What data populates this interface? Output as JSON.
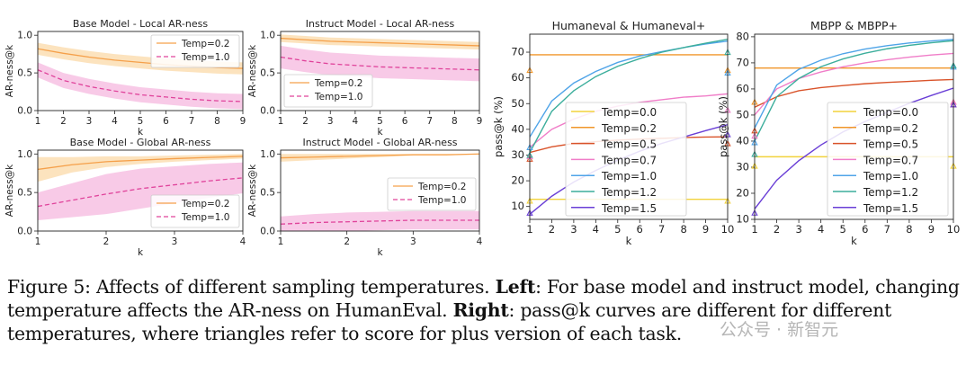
{
  "caption": {
    "lead": "Figure 5: Affects of different sampling temperatures. ",
    "left_label": "Left",
    "left_text": ": For base model and instruct model, changing temperature affects the AR-ness on HumanEval. ",
    "right_label": "Right",
    "right_text": ": pass@k curves are different for different temperatures, where triangles refer to score for plus version of each task."
  },
  "watermark": "公众号 · 新智元",
  "colors": {
    "temp02_ar": "#f5a04a",
    "temp10_ar": "#e0439b",
    "band02": "#fbd9a8",
    "band10": "#f5b8df",
    "t00": "#f2d23c",
    "t02": "#f0962a",
    "t05": "#d9532a",
    "t07": "#f07dc8",
    "t10": "#4fa4e8",
    "t12": "#3cae9c",
    "t15": "#6a3fd6"
  },
  "chart_data": [
    {
      "type": "line",
      "title": "Base Model - Local AR-ness",
      "xlabel": "k",
      "ylabel": "AR-ness@k",
      "x": [
        1,
        2,
        3,
        4,
        5,
        6,
        7,
        8,
        9
      ],
      "xlim": [
        1,
        9
      ],
      "ylim": [
        0,
        1.05
      ],
      "yticks": [
        0.0,
        0.5,
        1.0
      ],
      "legend": "top-right",
      "series": [
        {
          "name": "Temp=0.2",
          "values": [
            0.82,
            0.76,
            0.71,
            0.67,
            0.64,
            0.61,
            0.59,
            0.57,
            0.56
          ],
          "band": [
            0.08,
            0.08,
            0.08,
            0.08,
            0.08,
            0.08,
            0.08,
            0.08,
            0.08
          ]
        },
        {
          "name": "Temp=1.0",
          "values": [
            0.54,
            0.4,
            0.32,
            0.26,
            0.21,
            0.18,
            0.15,
            0.13,
            0.12
          ],
          "band": [
            0.1,
            0.1,
            0.1,
            0.1,
            0.1,
            0.1,
            0.1,
            0.1,
            0.1
          ]
        }
      ]
    },
    {
      "type": "line",
      "title": "Instruct Model - Local AR-ness",
      "xlabel": "k",
      "ylabel": "AR-ness@k",
      "x": [
        1,
        2,
        3,
        4,
        5,
        6,
        7,
        8,
        9
      ],
      "xlim": [
        1,
        9
      ],
      "ylim": [
        0,
        1.05
      ],
      "yticks": [
        0.0,
        0.5,
        1.0
      ],
      "legend": "bottom-left",
      "series": [
        {
          "name": "Temp=0.2",
          "values": [
            0.96,
            0.94,
            0.92,
            0.91,
            0.9,
            0.89,
            0.88,
            0.87,
            0.86
          ],
          "band": [
            0.05,
            0.05,
            0.05,
            0.05,
            0.05,
            0.05,
            0.05,
            0.05,
            0.05
          ]
        },
        {
          "name": "Temp=1.0",
          "values": [
            0.71,
            0.66,
            0.62,
            0.6,
            0.58,
            0.57,
            0.56,
            0.55,
            0.54
          ],
          "band": [
            0.15,
            0.15,
            0.15,
            0.15,
            0.15,
            0.15,
            0.15,
            0.15,
            0.15
          ]
        }
      ]
    },
    {
      "type": "line",
      "title": "Base Model - Global AR-ness",
      "xlabel": "k",
      "ylabel": "AR-ness@k",
      "x": [
        1,
        1.5,
        2,
        2.5,
        3,
        3.5,
        4
      ],
      "xlim": [
        1,
        4
      ],
      "ylim": [
        0,
        1.05
      ],
      "xticks": [
        1,
        2,
        3,
        4
      ],
      "yticks": [
        0.0,
        0.5,
        1.0
      ],
      "legend": "bottom-right",
      "series": [
        {
          "name": "Temp=0.2",
          "values": [
            0.8,
            0.86,
            0.9,
            0.92,
            0.94,
            0.955,
            0.97
          ],
          "band": [
            0.16,
            0.1,
            0.07,
            0.05,
            0.04,
            0.035,
            0.03
          ]
        },
        {
          "name": "Temp=1.0",
          "values": [
            0.32,
            0.4,
            0.48,
            0.55,
            0.6,
            0.65,
            0.69
          ],
          "band": [
            0.18,
            0.22,
            0.26,
            0.26,
            0.24,
            0.22,
            0.2
          ]
        }
      ]
    },
    {
      "type": "line",
      "title": "Instruct Model - Global AR-ness",
      "xlabel": "k",
      "ylabel": "AR-ness@k",
      "x": [
        1,
        1.5,
        2,
        2.5,
        3,
        3.5,
        4
      ],
      "xlim": [
        1,
        4
      ],
      "ylim": [
        0,
        1.05
      ],
      "xticks": [
        1,
        2,
        3,
        4
      ],
      "yticks": [
        0.0,
        0.5,
        1.0
      ],
      "legend": "right",
      "series": [
        {
          "name": "Temp=0.2",
          "values": [
            0.95,
            0.96,
            0.97,
            0.98,
            0.99,
            0.99,
            1.0
          ],
          "band": [
            0.05,
            0.04,
            0.03,
            0.02,
            0.01,
            0.01,
            0.0
          ]
        },
        {
          "name": "Temp=1.0",
          "values": [
            0.09,
            0.11,
            0.12,
            0.13,
            0.14,
            0.14,
            0.14
          ],
          "band": [
            0.1,
            0.11,
            0.12,
            0.12,
            0.12,
            0.12,
            0.12
          ]
        }
      ]
    },
    {
      "type": "line",
      "title": "Humaneval & Humaneval+",
      "xlabel": "k",
      "ylabel": "pass@k (%)",
      "x": [
        1,
        2,
        3,
        4,
        5,
        6,
        7,
        8,
        9,
        10
      ],
      "xlim": [
        1,
        10
      ],
      "ylim": [
        5,
        77
      ],
      "yticks": [
        10,
        20,
        30,
        40,
        50,
        60,
        70
      ],
      "legend": "left",
      "series": [
        {
          "name": "Temp=0.0",
          "values": [
            12.8,
            12.8,
            12.8,
            12.8,
            12.8,
            12.8,
            12.8,
            12.8,
            12.8,
            12.8
          ],
          "plus": [
            12.2,
            12.2
          ]
        },
        {
          "name": "Temp=0.2",
          "values": [
            69,
            69,
            69,
            69,
            69,
            69,
            69,
            69,
            69,
            69
          ],
          "plus": [
            63,
            63
          ]
        },
        {
          "name": "Temp=0.5",
          "values": [
            31,
            33.2,
            34.5,
            35.2,
            35.8,
            36.2,
            36.5,
            36.8,
            37,
            37.1
          ],
          "plus": [
            28.5,
            34.5
          ]
        },
        {
          "name": "Temp=0.7",
          "values": [
            33,
            40,
            44,
            47,
            49,
            50.5,
            51.5,
            52.5,
            53,
            53.8
          ],
          "plus": [
            29.5,
            47.5
          ]
        },
        {
          "name": "Temp=1.0",
          "values": [
            37,
            51,
            58,
            62.5,
            66,
            68.5,
            70.2,
            71.8,
            73.2,
            74.3
          ],
          "plus": [
            33,
            62
          ]
        },
        {
          "name": "Temp=1.2",
          "values": [
            31,
            47,
            55,
            60.5,
            64.5,
            67.5,
            70,
            71.8,
            73.5,
            75
          ],
          "plus": [
            30,
            70
          ]
        },
        {
          "name": "Temp=1.5",
          "values": [
            7,
            14,
            19.5,
            24,
            28,
            31.5,
            34.5,
            37,
            39.5,
            41.8
          ],
          "plus": [
            7.5,
            38
          ]
        }
      ]
    },
    {
      "type": "line",
      "title": "MBPP & MBPP+",
      "xlabel": "k",
      "ylabel": "pass@k (%)",
      "x": [
        1,
        2,
        3,
        4,
        5,
        6,
        7,
        8,
        9,
        10
      ],
      "xlim": [
        1,
        10
      ],
      "ylim": [
        10,
        81
      ],
      "yticks": [
        10,
        20,
        30,
        40,
        50,
        60,
        70,
        80
      ],
      "legend": "right",
      "series": [
        {
          "name": "Temp=0.0",
          "values": [
            34,
            34,
            34,
            34,
            34,
            34,
            34,
            34,
            34,
            34
          ],
          "plus": [
            30.5,
            30.5
          ]
        },
        {
          "name": "Temp=0.2",
          "values": [
            68,
            68,
            68,
            68,
            68,
            68,
            68,
            68,
            68,
            68
          ],
          "plus": [
            55,
            55
          ]
        },
        {
          "name": "Temp=0.5",
          "values": [
            53,
            57,
            59.3,
            60.5,
            61.3,
            62,
            62.5,
            62.9,
            63.3,
            63.6
          ],
          "plus": [
            44,
            54
          ]
        },
        {
          "name": "Temp=0.7",
          "values": [
            50,
            60,
            64,
            66.5,
            68.5,
            70,
            71.2,
            72.2,
            73,
            73.6
          ],
          "plus": [
            42,
            55
          ]
        },
        {
          "name": "Temp=1.0",
          "values": [
            45,
            61.5,
            67.5,
            71,
            73.5,
            75.3,
            76.6,
            77.6,
            78.4,
            79
          ],
          "plus": [
            39.5,
            68.5
          ]
        },
        {
          "name": "Temp=1.2",
          "values": [
            40,
            57,
            64,
            68.5,
            71.5,
            73.7,
            75.4,
            76.7,
            77.7,
            78.5
          ],
          "plus": [
            35,
            69
          ]
        },
        {
          "name": "Temp=1.5",
          "values": [
            14,
            25,
            32.5,
            38.5,
            43.5,
            47.5,
            51,
            54.5,
            57.5,
            60.3
          ],
          "plus": [
            12.5,
            54
          ]
        }
      ]
    }
  ]
}
